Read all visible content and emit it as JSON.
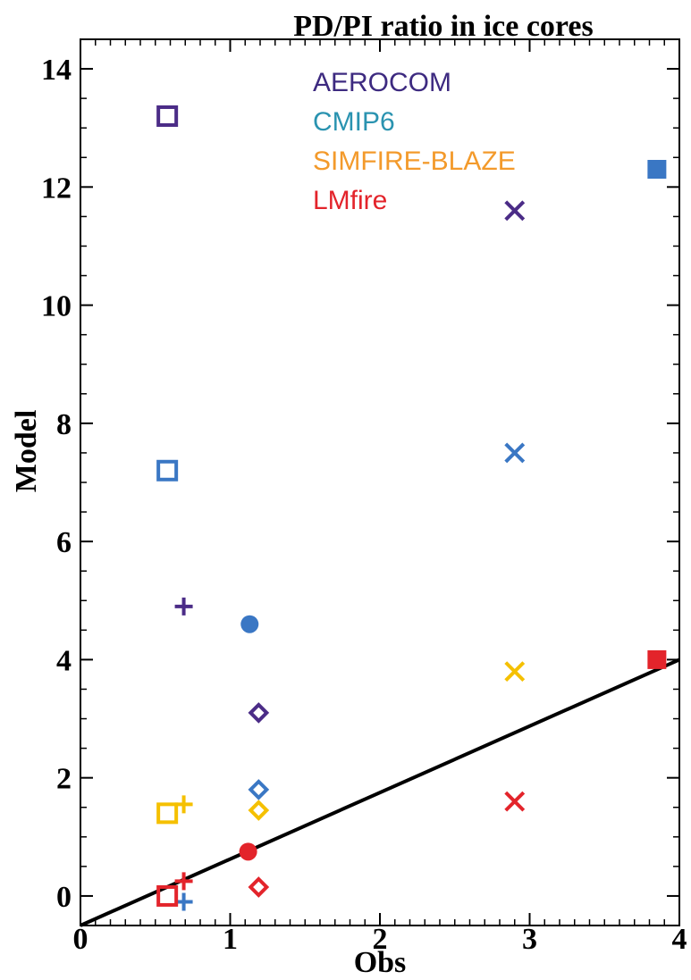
{
  "chart_data": {
    "type": "scatter",
    "title": "PD/PI ratio in ice cores",
    "xlabel": "Obs",
    "ylabel": "Model",
    "xlim": [
      0,
      4
    ],
    "ylim": [
      -0.5,
      14.5
    ],
    "xticks": [
      0,
      1,
      2,
      3,
      4
    ],
    "yticks": [
      0,
      2,
      4,
      6,
      8,
      10,
      12,
      14
    ],
    "grid": false,
    "legend_position": "top",
    "reference_line": {
      "x": [
        0,
        4
      ],
      "y": [
        -0.5,
        4.0
      ],
      "color": "#000000"
    },
    "series": [
      {
        "name": "AEROCOM",
        "color": "#4b2c87",
        "points": [
          {
            "x": 0.58,
            "y": 13.2,
            "marker": "square-open"
          },
          {
            "x": 0.69,
            "y": 4.9,
            "marker": "plus"
          },
          {
            "x": 1.19,
            "y": 3.1,
            "marker": "diamond-open"
          },
          {
            "x": 2.9,
            "y": 11.6,
            "marker": "x"
          }
        ]
      },
      {
        "name": "CMIP6",
        "color": "#3a77c4",
        "points": [
          {
            "x": 0.58,
            "y": 7.2,
            "marker": "square-open"
          },
          {
            "x": 0.69,
            "y": -0.1,
            "marker": "plus"
          },
          {
            "x": 1.13,
            "y": 4.6,
            "marker": "circle-filled"
          },
          {
            "x": 1.19,
            "y": 1.8,
            "marker": "diamond-open"
          },
          {
            "x": 2.9,
            "y": 7.5,
            "marker": "x"
          },
          {
            "x": 3.85,
            "y": 12.3,
            "marker": "square-filled"
          }
        ]
      },
      {
        "name": "SIMFIRE-BLAZE",
        "color": "#f5c000",
        "points": [
          {
            "x": 0.58,
            "y": 1.4,
            "marker": "square-open"
          },
          {
            "x": 0.69,
            "y": 1.55,
            "marker": "plus"
          },
          {
            "x": 1.19,
            "y": 1.45,
            "marker": "diamond-open"
          },
          {
            "x": 2.9,
            "y": 3.8,
            "marker": "x"
          }
        ]
      },
      {
        "name": "LMfire",
        "color": "#e3242b",
        "points": [
          {
            "x": 0.58,
            "y": 0.0,
            "marker": "square-open"
          },
          {
            "x": 0.69,
            "y": 0.25,
            "marker": "plus"
          },
          {
            "x": 1.12,
            "y": 0.75,
            "marker": "circle-filled"
          },
          {
            "x": 1.19,
            "y": 0.15,
            "marker": "diamond-open"
          },
          {
            "x": 2.9,
            "y": 1.6,
            "marker": "x"
          },
          {
            "x": 3.85,
            "y": 4.0,
            "marker": "square-filled"
          }
        ]
      }
    ],
    "legend": [
      {
        "label": "AEROCOM",
        "color": "#3d2a80"
      },
      {
        "label": "CMIP6",
        "color": "#2a93b0"
      },
      {
        "label": "SIMFIRE-BLAZE",
        "color": "#f39a2b"
      },
      {
        "label": "LMfire",
        "color": "#e3242b"
      }
    ]
  }
}
